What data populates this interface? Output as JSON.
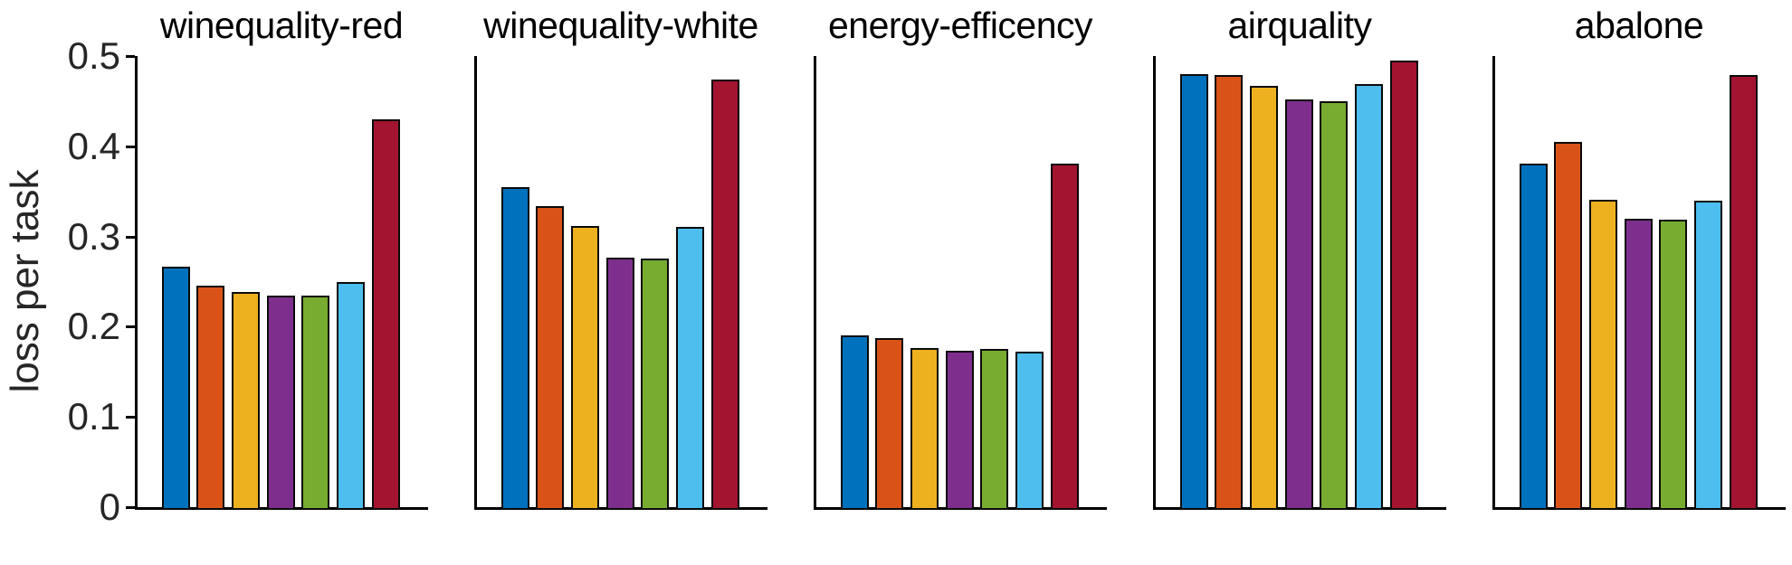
{
  "figure": {
    "ylabel": "loss per task",
    "ylim": [
      0,
      0.5
    ],
    "yticks": [
      "0",
      "0.1",
      "0.2",
      "0.3",
      "0.4",
      "0.5"
    ],
    "ytick_values": [
      0,
      0.1,
      0.2,
      0.3,
      0.4,
      0.5
    ],
    "grid": "off",
    "legend": "none",
    "text_color": "#262626",
    "axis_color": "#000000",
    "bar_edge_color": "#0a0a0a",
    "palette": [
      "#0072BD",
      "#D95319",
      "#EDB120",
      "#7E2F8E",
      "#77AC30",
      "#4DBEEE",
      "#A2142F"
    ]
  },
  "chart_data": [
    {
      "type": "bar",
      "title": "winequality-red",
      "ylabel": "loss per task",
      "ylim": [
        0,
        0.5
      ],
      "values": [
        0.267,
        0.245,
        0.238,
        0.234,
        0.234,
        0.249,
        0.43
      ]
    },
    {
      "type": "bar",
      "title": "winequality-white",
      "ylabel": "loss per task",
      "ylim": [
        0,
        0.5
      ],
      "values": [
        0.355,
        0.334,
        0.312,
        0.277,
        0.276,
        0.311,
        0.474
      ]
    },
    {
      "type": "bar",
      "title": "energy-efficency",
      "ylabel": "loss per task",
      "ylim": [
        0,
        0.5
      ],
      "values": [
        0.19,
        0.187,
        0.176,
        0.173,
        0.175,
        0.172,
        0.381
      ]
    },
    {
      "type": "bar",
      "title": "airquality",
      "ylabel": "loss per task",
      "ylim": [
        0,
        0.5
      ],
      "values": [
        0.48,
        0.479,
        0.467,
        0.452,
        0.45,
        0.469,
        0.495
      ]
    },
    {
      "type": "bar",
      "title": "abalone",
      "ylabel": "loss per task",
      "ylim": [
        0,
        0.5
      ],
      "values": [
        0.381,
        0.405,
        0.341,
        0.32,
        0.319,
        0.34,
        0.479
      ]
    }
  ]
}
